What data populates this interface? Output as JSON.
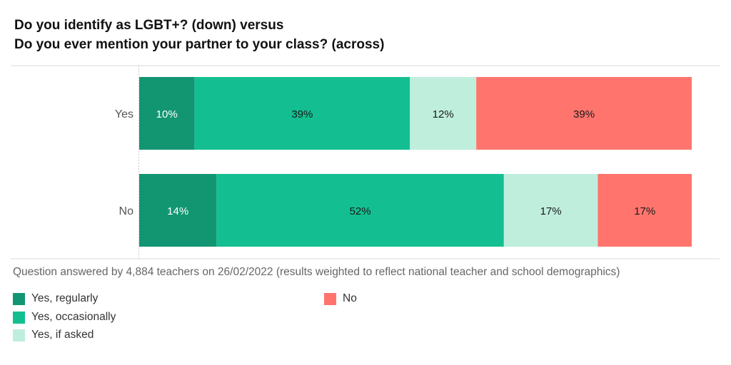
{
  "title": {
    "line1": "Do you identify as LGBT+? (down) versus",
    "line2": "Do you ever mention your partner to your class? (across)"
  },
  "note": "Question answered by 4,884 teachers on 26/02/2022 (results weighted to reflect national teacher and school demographics)",
  "colors": {
    "yes_regularly": "#129672",
    "yes_occasionally": "#13bf90",
    "yes_if_asked": "#bfeedd",
    "no": "#ff756e"
  },
  "chart_data": {
    "type": "bar",
    "orientation": "horizontal",
    "stacked": true,
    "categories": [
      "Yes",
      "No"
    ],
    "series": [
      {
        "name": "Yes, regularly",
        "color_key": "yes_regularly",
        "values": [
          10,
          14
        ],
        "labels": [
          "10%",
          "14%"
        ]
      },
      {
        "name": "Yes, occasionally",
        "color_key": "yes_occasionally",
        "values": [
          39,
          52
        ],
        "labels": [
          "39%",
          "52%"
        ]
      },
      {
        "name": "Yes, if asked",
        "color_key": "yes_if_asked",
        "values": [
          12,
          17
        ],
        "labels": [
          "12%",
          "17%"
        ]
      },
      {
        "name": "No",
        "color_key": "no",
        "values": [
          39,
          17
        ],
        "labels": [
          "39%",
          "17%"
        ]
      }
    ],
    "xlim": [
      0,
      100
    ],
    "legend_position": "bottom-left"
  }
}
